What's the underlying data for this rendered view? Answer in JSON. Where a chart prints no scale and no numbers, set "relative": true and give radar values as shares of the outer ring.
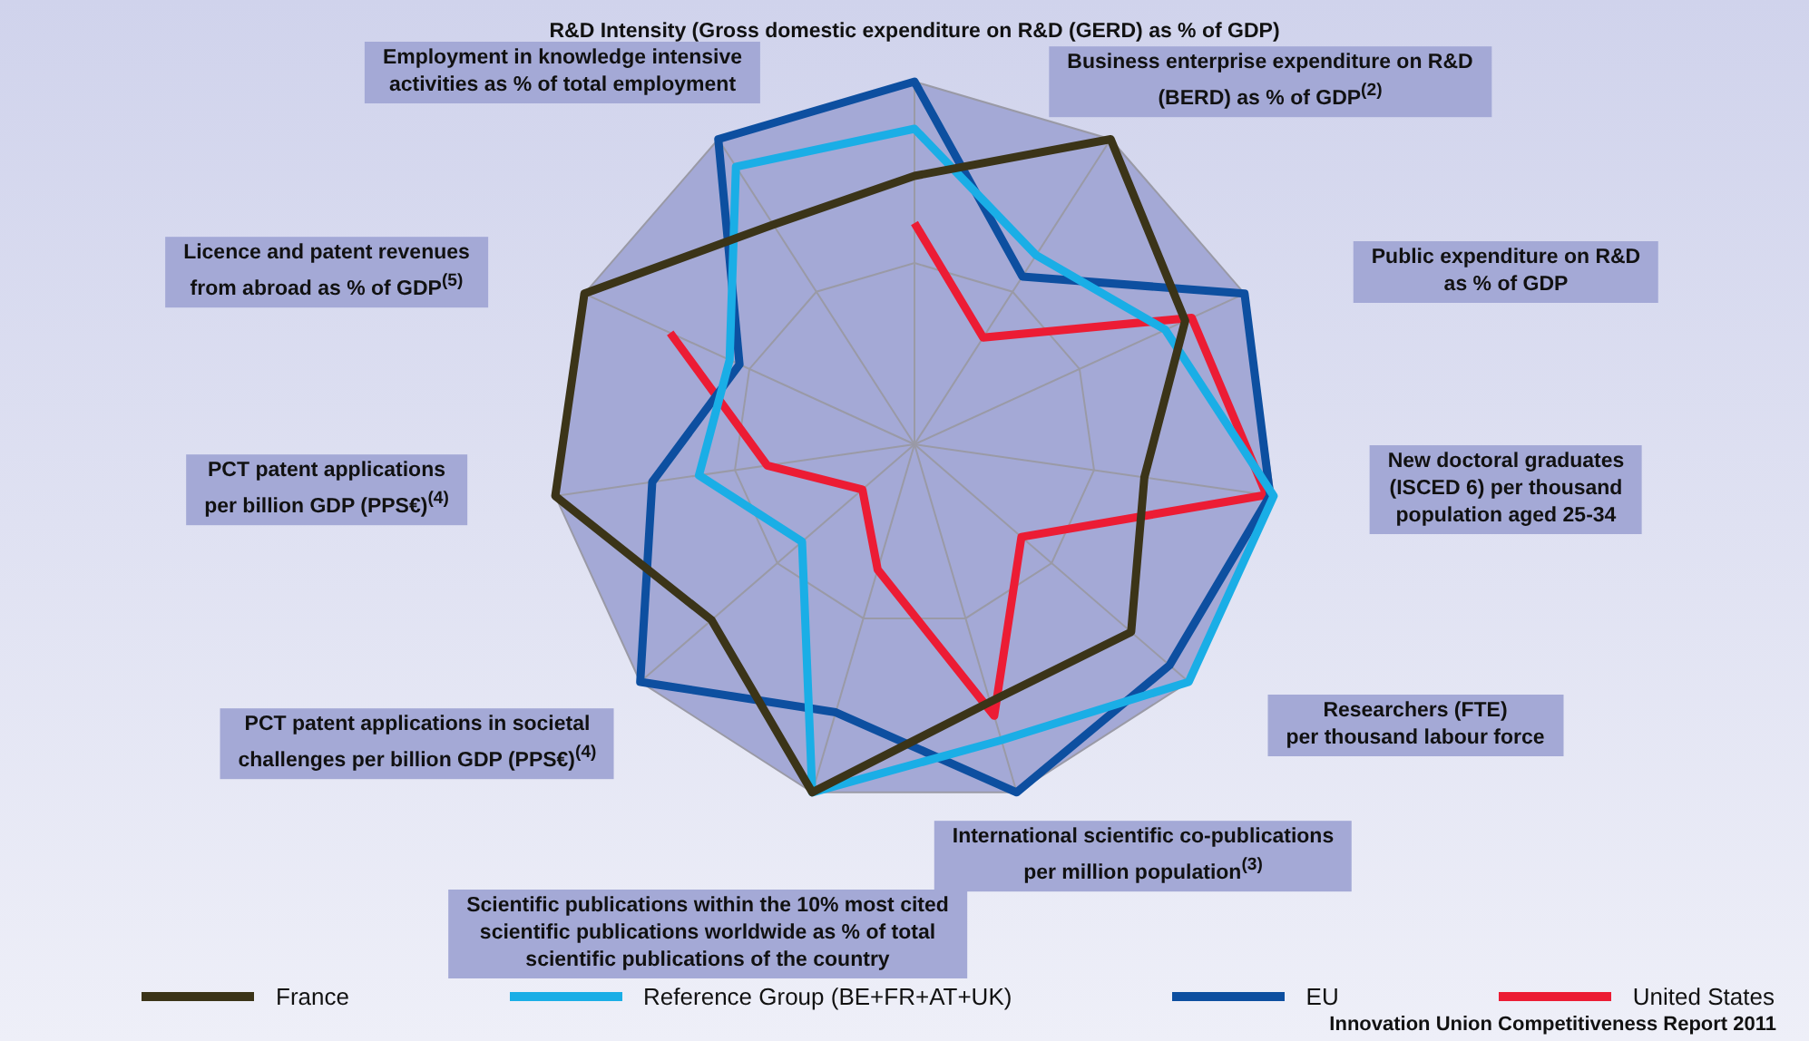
{
  "chart_data": {
    "type": "radar",
    "relative": true,
    "grid": true,
    "legend": "bottom",
    "marker": "none",
    "line_style": "solid",
    "categories": [
      "R&D Intensity (Gross domestic expenditure on R&D (GERD) as % of GDP)",
      "Business enterprise expenditure on R&D\n(BERD) as % of GDP$^{(2)}$",
      "Public expenditure on R&D\nas % of GDP",
      "New doctoral graduates\n(ISCED 6) per thousand\npopulation aged 25-34",
      "Researchers (FTE)\nper thousand labour force",
      "International scientific co-publications\nper million population$^{(3)}$",
      "Scientific publications within the 10% most cited\nscientific publications worldwide as % of total\nscientific publications of the country",
      "PCT patent applications in societal\nchallenges per billion GDP (PPS€)$^{(4)}$",
      "PCT patent applications\nper billion GDP (PPS€)$^{(4)}$",
      "Licence and patent revenues\nfrom abroad as % of GDP$^{(5)}$",
      "Employment in knowledge intensive\nactivities as % of total employment"
    ],
    "series": [
      {
        "name": "France",
        "color": "#3b3418",
        "values": [
          0.74,
          1.0,
          0.82,
          0.64,
          0.79,
          0.74,
          1.0,
          0.74,
          1.0,
          1.0,
          0.72
        ]
      },
      {
        "name": "Reference Group (BE+FR+AT+UK)",
        "color": "#1aaee6",
        "values": [
          0.87,
          0.62,
          0.76,
          1.0,
          1.0,
          0.85,
          1.0,
          0.41,
          0.6,
          0.56,
          0.91
        ]
      },
      {
        "name": "EU",
        "color": "#0d4fa0",
        "values": [
          1.0,
          0.55,
          1.0,
          0.99,
          0.93,
          1.0,
          0.77,
          1.0,
          0.73,
          0.53,
          1.0
        ]
      },
      {
        "name": "United States",
        "color": "#ec1c34",
        "values": [
          0.61,
          0.35,
          0.84,
          0.98,
          0.39,
          0.78,
          0.36,
          0.19,
          0.41,
          0.74,
          null
        ]
      }
    ],
    "annotations": [
      "Innovation Union Competitiveness Report 2011"
    ]
  }
}
